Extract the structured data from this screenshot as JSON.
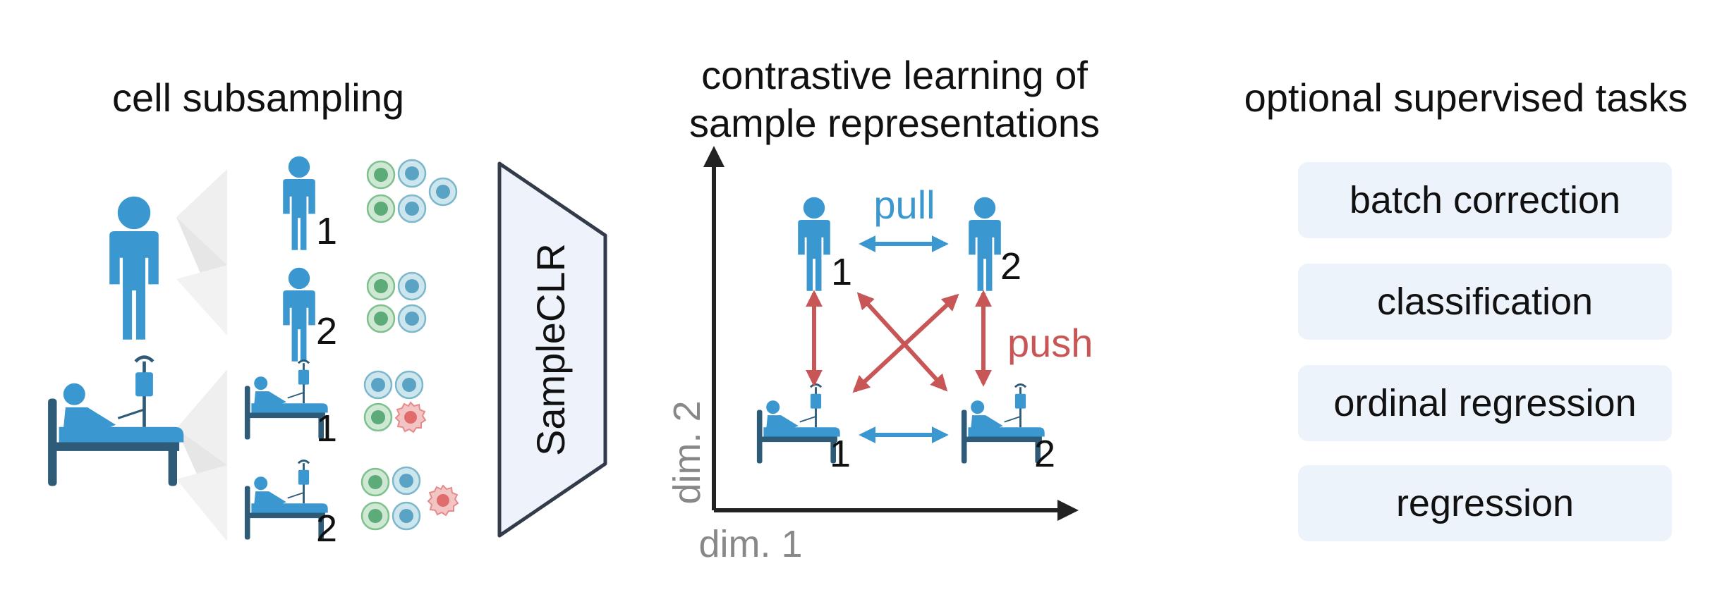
{
  "panels": {
    "subsampling": {
      "title": "cell subsampling"
    },
    "contrastive": {
      "title_line1": "contrastive learning of",
      "title_line2": "sample representations",
      "pull_label": "pull",
      "push_label": "push",
      "x_axis_label": "dim. 1",
      "y_axis_label": "dim. 2"
    },
    "supervised": {
      "title": "optional supervised tasks",
      "tasks": [
        "batch correction",
        "classification",
        "ordinal regression",
        "regression"
      ]
    }
  },
  "encoder": {
    "label": "SampleCLR"
  },
  "subsample_ids": [
    "1",
    "2",
    "1",
    "2"
  ],
  "embedding_ids": [
    "1",
    "2",
    "1",
    "2"
  ],
  "colors": {
    "person": "#3b97cf",
    "patient": "#3b97cf",
    "bed": "#2e5b78",
    "pull_arrow": "#3b97cf",
    "push_arrow": "#c85656",
    "encoder_fill": "#eef3fb",
    "encoder_stroke": "#333b4a",
    "task_box": "#edf3fb",
    "cell_green": "#5dab78",
    "cell_blue": "#5ba3c4",
    "cell_red": "#e06c6c"
  },
  "icons": [
    "healthy-person-icon",
    "patient-in-bed-icon",
    "cell-icon",
    "diseased-cell-icon"
  ]
}
